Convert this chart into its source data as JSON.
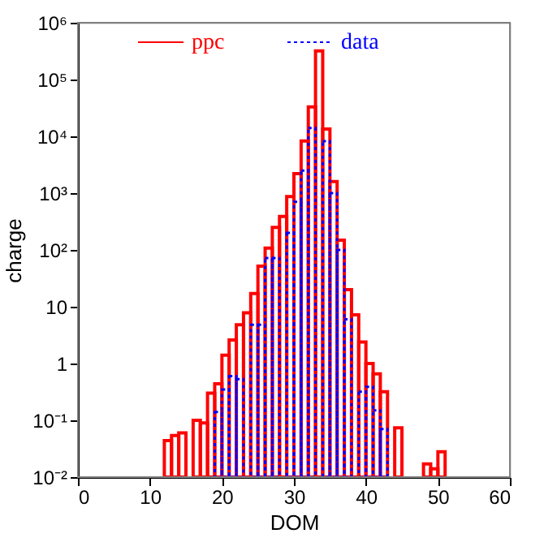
{
  "chart_data": {
    "type": "histogram",
    "xlabel": "DOM",
    "ylabel": "charge",
    "log": "y",
    "grid": false,
    "legend": "top",
    "xlim": [
      0,
      60
    ],
    "xticks": [
      0,
      10,
      20,
      30,
      40,
      50,
      60
    ],
    "ylim": [
      0.01,
      1000000
    ],
    "yticks": [
      {
        "value": 0.01,
        "label": "10⁻²"
      },
      {
        "value": 0.1,
        "label": "10⁻¹"
      },
      1,
      10,
      {
        "value": 100,
        "label": "10²"
      },
      {
        "value": 1000,
        "label": "10³"
      },
      {
        "value": 10000,
        "label": "10⁴"
      },
      {
        "value": 100000,
        "label": "10⁵"
      },
      {
        "value": 1000000,
        "label": "10⁶"
      }
    ],
    "bins": [
      0,
      1,
      2,
      3,
      4,
      5,
      6,
      7,
      8,
      9,
      10,
      11,
      12,
      13,
      14,
      15,
      16,
      17,
      18,
      19,
      20,
      21,
      22,
      23,
      24,
      25,
      26,
      27,
      28,
      29,
      30,
      31,
      32,
      33,
      34,
      35,
      36,
      37,
      38,
      39,
      40,
      41,
      42,
      43,
      44,
      45,
      46,
      47,
      48,
      49,
      50,
      51,
      52,
      53,
      54,
      55,
      56,
      57,
      58,
      59,
      60
    ],
    "series": [
      {
        "name": "ppc",
        "color": "#ff0000",
        "line_style": "solid",
        "values": [
          null,
          null,
          null,
          null,
          null,
          null,
          null,
          null,
          null,
          null,
          null,
          null,
          0.044,
          0.054,
          0.06,
          null,
          0.1,
          0.09,
          0.3,
          0.44,
          1.4,
          2.6,
          4.8,
          7.8,
          17,
          52,
          108,
          250,
          390,
          870,
          2200,
          8300,
          33000,
          320000,
          13500,
          1600,
          148,
          20,
          7.2,
          2.4,
          1.0,
          0.66,
          0.32,
          null,
          0.074,
          null,
          null,
          null,
          0.017,
          0.014,
          0.028,
          null,
          null,
          null,
          null,
          null,
          null,
          null,
          null,
          null
        ]
      },
      {
        "name": "data",
        "color": "#0000ff",
        "line_style": "dotted",
        "values": [
          null,
          null,
          null,
          null,
          null,
          null,
          null,
          null,
          null,
          null,
          null,
          null,
          null,
          null,
          null,
          null,
          null,
          null,
          null,
          0.14,
          0.35,
          0.6,
          0.53,
          null,
          4.8,
          4.8,
          72,
          72,
          null,
          200,
          700,
          2500,
          14000,
          null,
          8200,
          1000,
          100,
          6,
          null,
          0.32,
          0.39,
          0.15,
          0.07,
          null,
          null,
          null,
          null,
          null,
          null,
          null,
          null,
          null,
          null,
          null,
          null,
          null,
          null,
          null,
          null,
          null
        ]
      }
    ]
  }
}
